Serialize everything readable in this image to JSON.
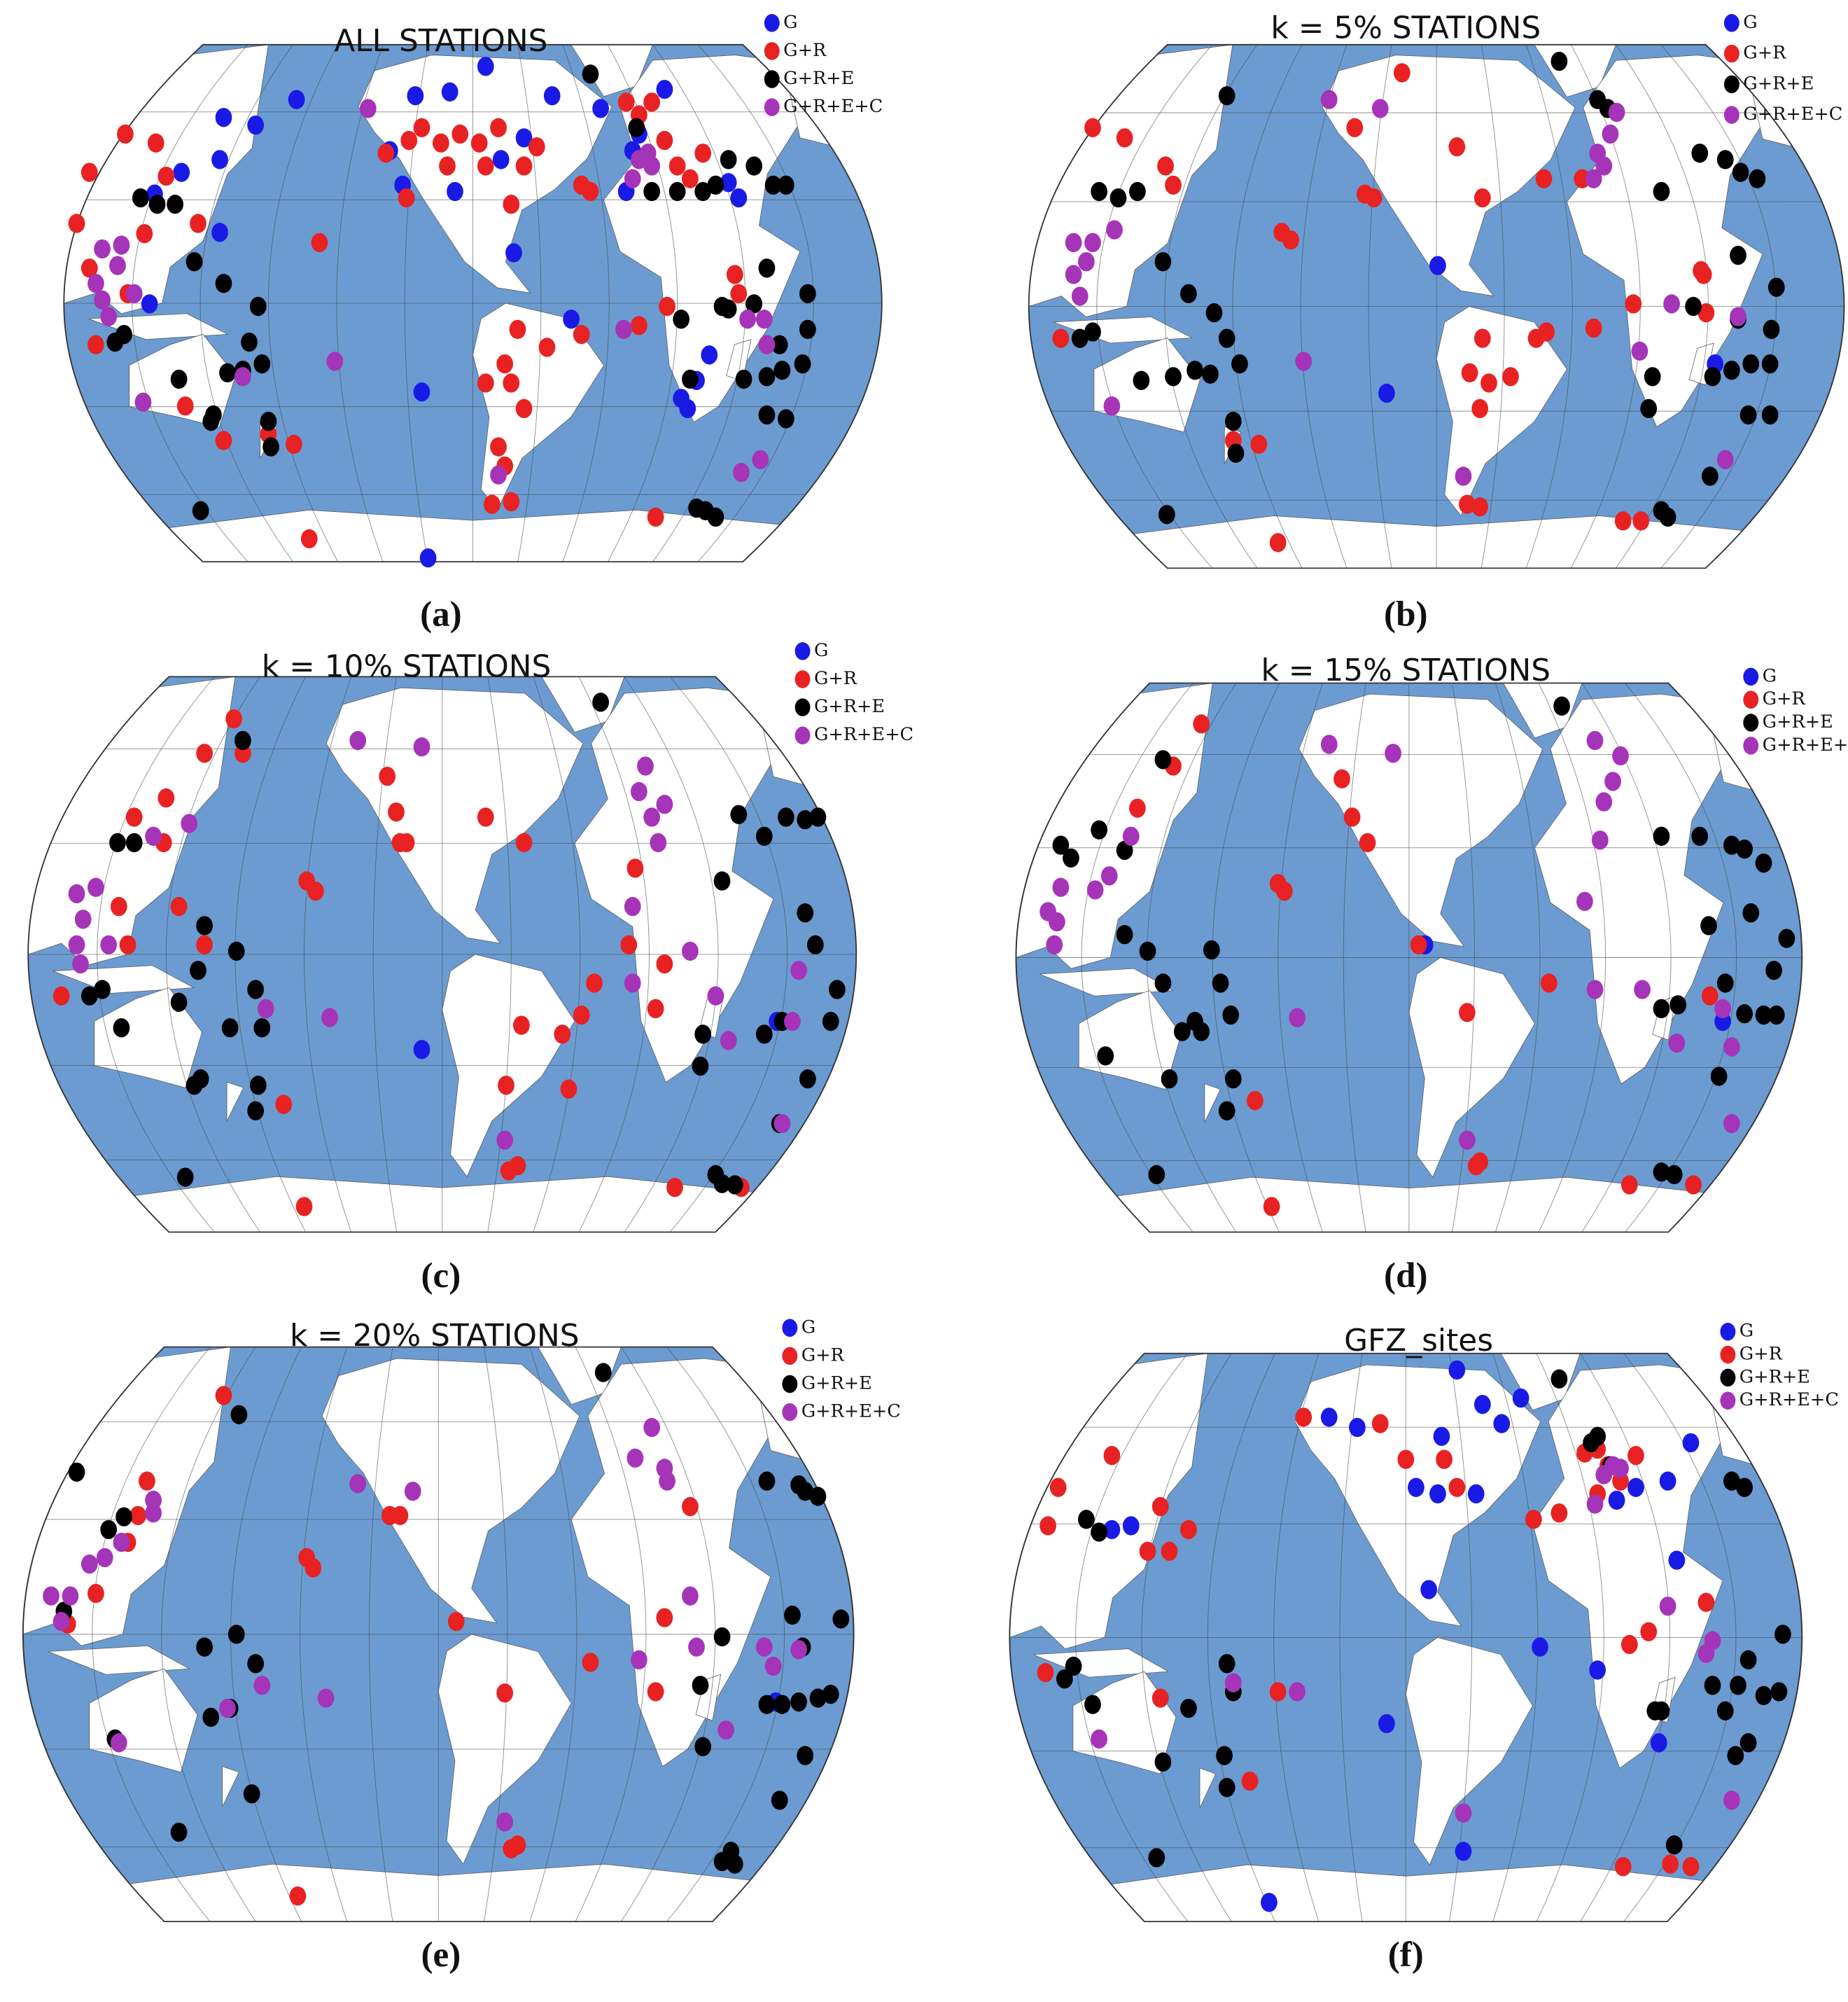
{
  "panels": [
    {
      "title": "ALL STATIONS",
      "label": "(a)",
      "legend": [
        "G",
        "G+R",
        "G+R+E",
        "G+R+E+C"
      ]
    },
    {
      "title": "k = 5% STATIONS",
      "label": "(b)",
      "legend": [
        "G",
        "G+R",
        "G+R+E",
        "G+R+E+C"
      ]
    },
    {
      "title": "k = 10% STATIONS",
      "label": "(c)",
      "legend": [
        "G",
        "G+R",
        "G+R+E",
        "G+R+E+C"
      ]
    },
    {
      "title": "k = 15% STATIONS",
      "label": "(d)",
      "legend": [
        "G",
        "G+R",
        "G+R+E",
        "G+R+E+C"
      ]
    },
    {
      "title": "k = 20% STATIONS",
      "label": "(e)",
      "legend": [
        "G",
        "G+R",
        "G+R+E",
        "G+R+E+C"
      ]
    },
    {
      "title": "GFZ_sites",
      "label": "(f)",
      "legend": [
        "G",
        "G+R",
        "G+R+E",
        "G+R+E+C"
      ]
    }
  ]
}
